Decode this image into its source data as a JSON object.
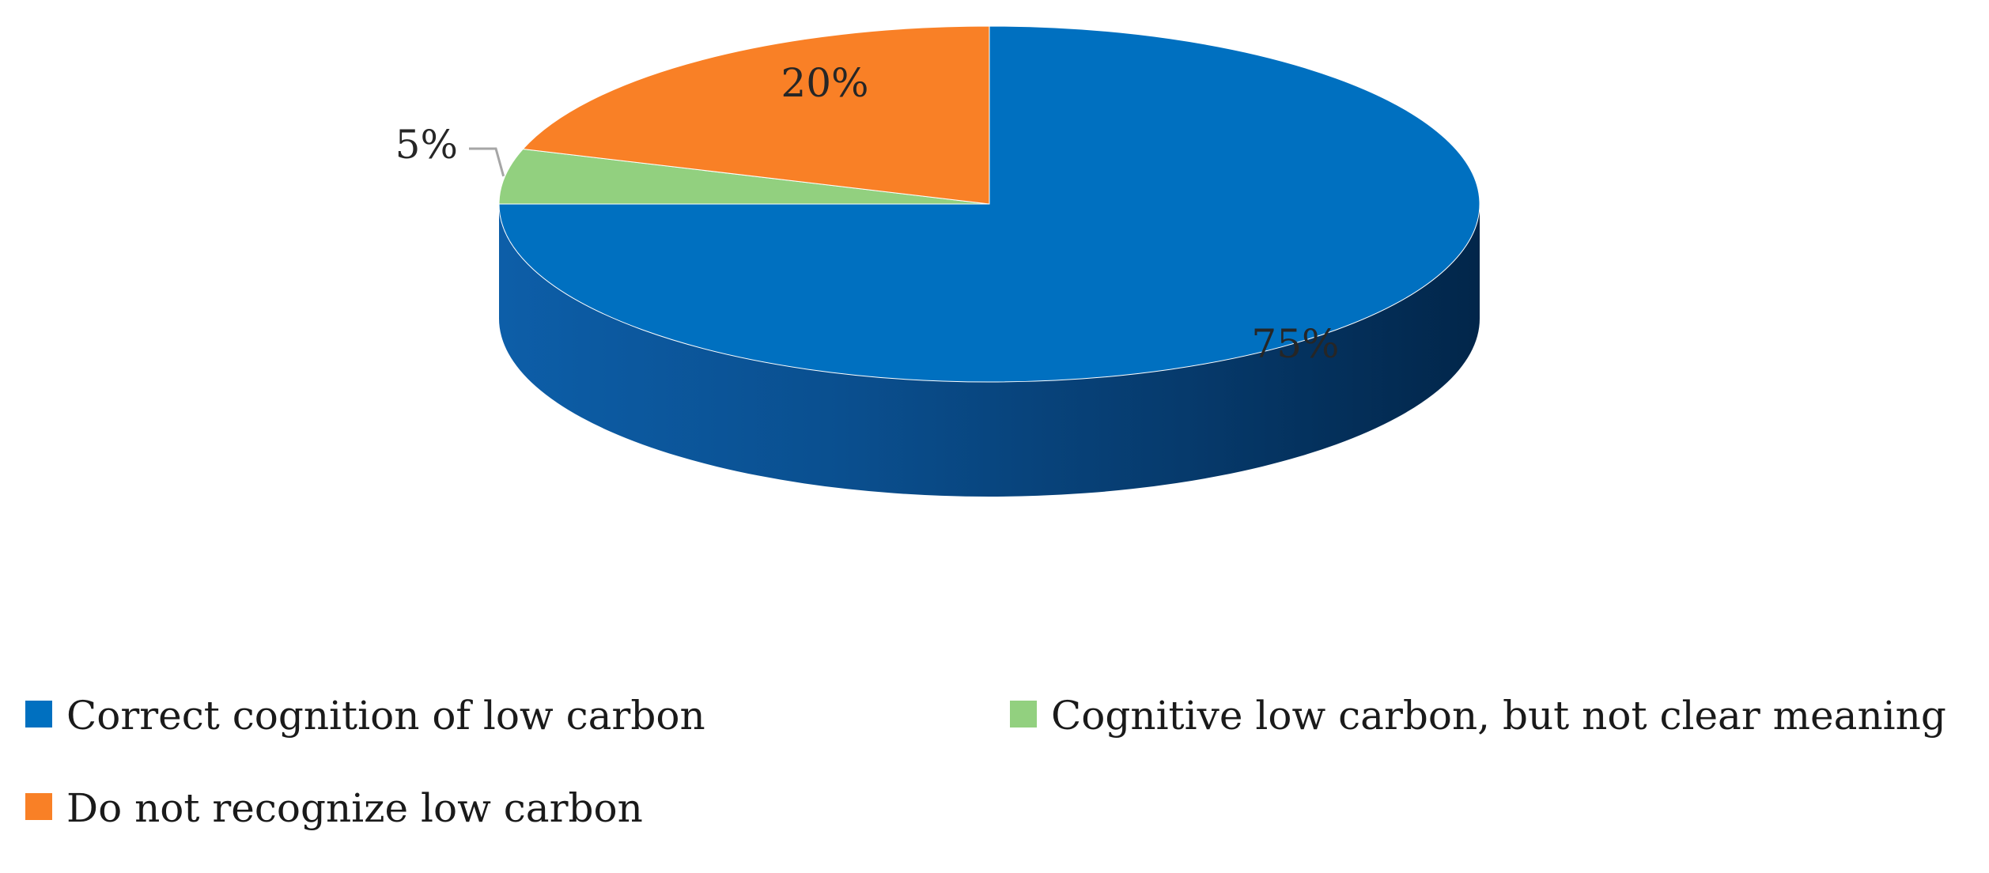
{
  "chart_data": {
    "type": "pie",
    "style": "3d",
    "title": "",
    "slices": [
      {
        "label": "Correct cognition of low carbon",
        "value": 75,
        "display": "75%",
        "color": "#0070C0"
      },
      {
        "label": "Cognitive low carbon, but not clear meaning",
        "value": 5,
        "display": "5%",
        "color": "#92D07F"
      },
      {
        "label": "Do not recognize low carbon",
        "value": 20,
        "display": "20%",
        "color": "#F98026"
      }
    ],
    "legend": {
      "position": "bottom",
      "order": [
        0,
        1,
        2
      ]
    }
  }
}
